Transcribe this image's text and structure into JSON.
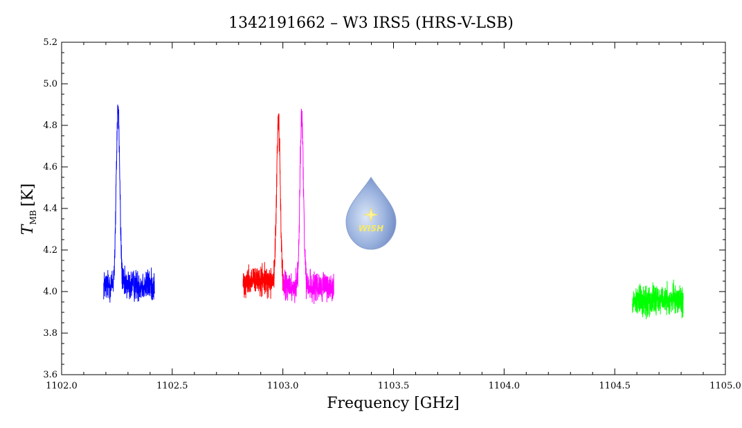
{
  "chart_data": {
    "type": "line",
    "title": "1342191662 – W3 IRS5 (HRS-V-LSB)",
    "xlabel": "Frequency [GHz]",
    "ylabel": {
      "symbol": "T",
      "subscript": "MB",
      "unit": "[K]"
    },
    "xlim": [
      1102.0,
      1105.0
    ],
    "ylim": [
      3.6,
      5.2
    ],
    "x_major_ticks": [
      1102.0,
      1102.5,
      1103.0,
      1103.5,
      1104.0,
      1104.5,
      1105.0
    ],
    "x_tick_labels": [
      "1102.0",
      "1102.5",
      "1103.0",
      "1103.5",
      "1104.0",
      "1104.5",
      "1105.0"
    ],
    "x_minor_step": 0.1,
    "y_major_ticks": [
      3.6,
      3.8,
      4.0,
      4.2,
      4.4,
      4.6,
      4.8,
      5.0,
      5.2
    ],
    "y_tick_labels": [
      "3.6",
      "3.8",
      "4.0",
      "4.2",
      "4.4",
      "4.6",
      "4.8",
      "5.0",
      "5.2"
    ],
    "y_minor_step": 0.05,
    "grid": false,
    "logo_text": "WISH",
    "series": [
      {
        "color": "#0000ff",
        "x_range": [
          1102.19,
          1102.42
        ],
        "baseline": 4.03,
        "noise": 0.11,
        "peaks": [
          {
            "center": 1102.255,
            "height": 0.85,
            "width": 0.008
          }
        ]
      },
      {
        "color": "#ff0000",
        "x_range": [
          1102.82,
          1103.0
        ],
        "baseline": 4.05,
        "noise": 0.1,
        "peaks": [
          {
            "center": 1102.98,
            "height": 0.78,
            "width": 0.008
          }
        ]
      },
      {
        "color": "#ff00ff",
        "x_range": [
          1103.0,
          1103.23
        ],
        "baseline": 4.02,
        "noise": 0.11,
        "peaks": [
          {
            "center": 1103.085,
            "height": 0.82,
            "width": 0.008
          }
        ]
      },
      {
        "color": "#00ff00",
        "x_range": [
          1104.58,
          1104.81
        ],
        "baseline": 3.96,
        "noise": 0.11,
        "peaks": []
      }
    ]
  }
}
